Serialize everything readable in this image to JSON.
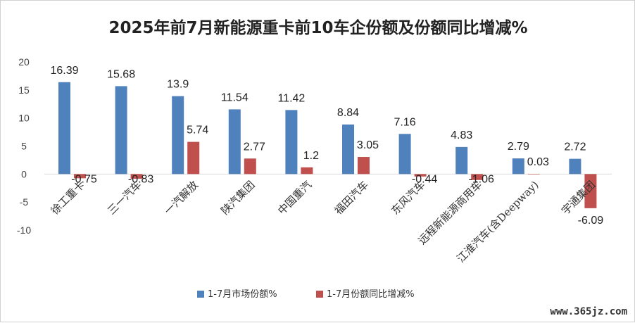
{
  "chart_data": {
    "type": "bar",
    "title": "2025年前7月新能源重卡前10车企份额及份额同比增减%",
    "categories": [
      "徐工重卡",
      "三一汽车",
      "一汽解放",
      "陕汽集团",
      "中国重汽",
      "福田汽车",
      "东风汽车",
      "远程新能源商用车",
      "江淮汽车(含Deepway)",
      "宇通集团"
    ],
    "series": [
      {
        "name": "1-7月市场份额%",
        "values": [
          16.39,
          15.68,
          13.9,
          11.54,
          11.42,
          8.84,
          7.16,
          4.83,
          2.79,
          2.72
        ],
        "labels": [
          "16.39",
          "15.68",
          "13.9",
          "11.54",
          "11.42",
          "8.84",
          "7.16",
          "4.83",
          "2.79",
          "2.72"
        ]
      },
      {
        "name": "1-7月份额同比增减%",
        "values": [
          -0.75,
          -0.83,
          5.74,
          2.77,
          1.2,
          3.05,
          -0.44,
          -1.06,
          0.03,
          -6.09
        ],
        "labels": [
          "-0.75",
          "-0.83",
          "5.74",
          "2.77",
          "1.2",
          "3.05",
          "-0.44",
          "-1.06",
          "0.03",
          "-6.09"
        ]
      }
    ],
    "colors": [
      "#4f81bd",
      "#c0504d"
    ],
    "ylim": [
      -10,
      20
    ],
    "yticks": [
      "20",
      "15",
      "10",
      "5",
      "0",
      "-5",
      "-10"
    ],
    "ytick_values": [
      20,
      15,
      10,
      5,
      0,
      -5,
      -10
    ],
    "grid": false,
    "legend_position": "bottom"
  },
  "watermark": "www.365jz.com"
}
